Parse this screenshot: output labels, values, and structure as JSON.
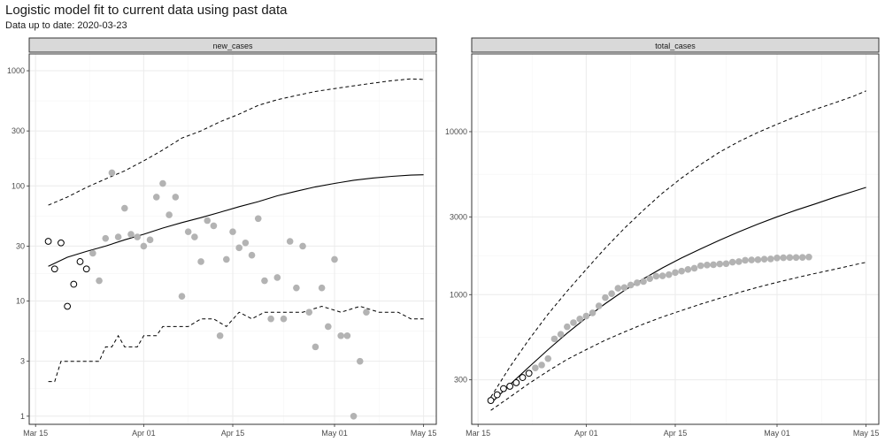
{
  "title": "Logistic model fit to current data using past data",
  "subtitle": "Data up to date: 2020-03-23",
  "chart_data": [
    {
      "type": "scatter",
      "facet": "new_cases",
      "y_scale": "log10",
      "ylim": [
        0.85,
        1400
      ],
      "y_ticks": [
        1,
        3,
        10,
        30,
        100,
        300,
        1000
      ],
      "x_ticks": [
        "2020-03-15",
        "2020-04-01",
        "2020-04-15",
        "2020-05-01",
        "2020-05-15"
      ],
      "x_tick_labels": [
        "Mar 15",
        "Apr 01",
        "Apr 15",
        "May 01",
        "May 15"
      ],
      "xlim": [
        "2020-03-14",
        "2020-05-17"
      ],
      "grid": true,
      "series": [
        {
          "kind": "current",
          "x": [
            "2020-03-17",
            "2020-03-18",
            "2020-03-19",
            "2020-03-20",
            "2020-03-21",
            "2020-03-22",
            "2020-03-23"
          ],
          "y": [
            33,
            19,
            32,
            9,
            14,
            22,
            19
          ]
        },
        {
          "kind": "past",
          "x": [
            "2020-03-24",
            "2020-03-25",
            "2020-03-26",
            "2020-03-27",
            "2020-03-28",
            "2020-03-29",
            "2020-03-30",
            "2020-03-31",
            "2020-04-01",
            "2020-04-02",
            "2020-04-03",
            "2020-04-04",
            "2020-04-05",
            "2020-04-06",
            "2020-04-07",
            "2020-04-08",
            "2020-04-09",
            "2020-04-10",
            "2020-04-11",
            "2020-04-12",
            "2020-04-13",
            "2020-04-14",
            "2020-04-15",
            "2020-04-16",
            "2020-04-17",
            "2020-04-18",
            "2020-04-19",
            "2020-04-20",
            "2020-04-21",
            "2020-04-22",
            "2020-04-23",
            "2020-04-24",
            "2020-04-25",
            "2020-04-26",
            "2020-04-27",
            "2020-04-28",
            "2020-04-29",
            "2020-04-30",
            "2020-05-01",
            "2020-05-02",
            "2020-05-03",
            "2020-05-04",
            "2020-05-05",
            "2020-05-06"
          ],
          "y": [
            26,
            15,
            35,
            130,
            36,
            64,
            38,
            36,
            30,
            34,
            80,
            105,
            56,
            80,
            11,
            40,
            36,
            22,
            50,
            45,
            5,
            23,
            40,
            29,
            32,
            25,
            52,
            15,
            7,
            16,
            7,
            33,
            13,
            30,
            8,
            4,
            13,
            6,
            23,
            5,
            5,
            1,
            3,
            8
          ]
        }
      ],
      "fit": {
        "x": [
          "2020-03-17",
          "2020-03-20",
          "2020-03-23",
          "2020-03-26",
          "2020-03-29",
          "2020-04-01",
          "2020-04-04",
          "2020-04-07",
          "2020-04-10",
          "2020-04-13",
          "2020-04-16",
          "2020-04-19",
          "2020-04-22",
          "2020-04-25",
          "2020-04-28",
          "2020-05-01",
          "2020-05-04",
          "2020-05-07",
          "2020-05-10",
          "2020-05-13",
          "2020-05-15"
        ],
        "y": [
          20,
          24,
          27,
          30,
          34,
          38,
          43,
          48,
          53,
          59,
          66,
          73,
          82,
          90,
          98,
          105,
          112,
          117,
          121,
          124,
          125
        ]
      },
      "upper": {
        "x": [
          "2020-03-17",
          "2020-03-20",
          "2020-03-23",
          "2020-03-26",
          "2020-03-29",
          "2020-04-01",
          "2020-04-04",
          "2020-04-07",
          "2020-04-10",
          "2020-04-13",
          "2020-04-16",
          "2020-04-19",
          "2020-04-22",
          "2020-04-25",
          "2020-04-28",
          "2020-05-01",
          "2020-05-04",
          "2020-05-07",
          "2020-05-10",
          "2020-05-13",
          "2020-05-15"
        ],
        "y": [
          68,
          80,
          97,
          115,
          135,
          165,
          205,
          260,
          300,
          360,
          420,
          500,
          560,
          610,
          660,
          700,
          740,
          780,
          820,
          850,
          840
        ]
      },
      "lower": {
        "x": [
          "2020-03-17",
          "2020-03-18",
          "2020-03-19",
          "2020-03-20",
          "2020-03-25",
          "2020-03-26",
          "2020-03-27",
          "2020-03-28",
          "2020-03-29",
          "2020-03-31",
          "2020-04-01",
          "2020-04-03",
          "2020-04-04",
          "2020-04-06",
          "2020-04-08",
          "2020-04-10",
          "2020-04-12",
          "2020-04-14",
          "2020-04-16",
          "2020-04-18",
          "2020-04-20",
          "2020-04-23",
          "2020-04-26",
          "2020-04-29",
          "2020-05-02",
          "2020-05-05",
          "2020-05-08",
          "2020-05-11",
          "2020-05-13",
          "2020-05-15"
        ],
        "y": [
          2,
          2,
          3,
          3,
          3,
          4,
          4,
          5,
          4,
          4,
          5,
          5,
          6,
          6,
          6,
          7,
          7,
          6,
          8,
          7,
          8,
          8,
          8,
          9,
          8,
          9,
          8,
          8,
          7,
          7
        ]
      }
    },
    {
      "type": "scatter",
      "facet": "total_cases",
      "y_scale": "log10",
      "ylim": [
        160,
        30000
      ],
      "y_ticks": [
        300,
        1000,
        3000,
        10000
      ],
      "x_ticks": [
        "2020-03-15",
        "2020-04-01",
        "2020-04-15",
        "2020-05-01",
        "2020-05-15"
      ],
      "x_tick_labels": [
        "Mar 15",
        "Apr 01",
        "Apr 15",
        "May 01",
        "May 15"
      ],
      "xlim": [
        "2020-03-14",
        "2020-05-17"
      ],
      "grid": true,
      "series": [
        {
          "kind": "current",
          "x": [
            "2020-03-17",
            "2020-03-18",
            "2020-03-19",
            "2020-03-20",
            "2020-03-21",
            "2020-03-22",
            "2020-03-23"
          ],
          "y": [
            224,
            243,
            265,
            274,
            288,
            310,
            329
          ]
        },
        {
          "kind": "past",
          "x": [
            "2020-03-24",
            "2020-03-25",
            "2020-03-26",
            "2020-03-27",
            "2020-03-28",
            "2020-03-29",
            "2020-03-30",
            "2020-03-31",
            "2020-04-01",
            "2020-04-02",
            "2020-04-03",
            "2020-04-04",
            "2020-04-05",
            "2020-04-06",
            "2020-04-07",
            "2020-04-08",
            "2020-04-09",
            "2020-04-10",
            "2020-04-11",
            "2020-04-12",
            "2020-04-13",
            "2020-04-14",
            "2020-04-15",
            "2020-04-16",
            "2020-04-17",
            "2020-04-18",
            "2020-04-19",
            "2020-04-20",
            "2020-04-21",
            "2020-04-22",
            "2020-04-23",
            "2020-04-24",
            "2020-04-25",
            "2020-04-26",
            "2020-04-27",
            "2020-04-28",
            "2020-04-29",
            "2020-04-30",
            "2020-05-01",
            "2020-05-02",
            "2020-05-03",
            "2020-05-04",
            "2020-05-05",
            "2020-05-06"
          ],
          "y": [
            355,
            370,
            405,
            535,
            571,
            635,
            673,
            709,
            739,
            773,
            853,
            958,
            1014,
            1094,
            1105,
            1145,
            1181,
            1203,
            1253,
            1298,
            1303,
            1326,
            1366,
            1395,
            1427,
            1452,
            1504,
            1519,
            1526,
            1542,
            1549,
            1582,
            1595,
            1625,
            1633,
            1637,
            1650,
            1656,
            1679,
            1684,
            1689,
            1690,
            1693,
            1701
          ]
        }
      ],
      "fit": {
        "x": [
          "2020-03-17",
          "2020-03-20",
          "2020-03-23",
          "2020-03-26",
          "2020-03-29",
          "2020-04-01",
          "2020-04-04",
          "2020-04-07",
          "2020-04-10",
          "2020-04-13",
          "2020-04-16",
          "2020-04-19",
          "2020-04-22",
          "2020-04-25",
          "2020-04-28",
          "2020-05-01",
          "2020-05-04",
          "2020-05-07",
          "2020-05-10",
          "2020-05-13",
          "2020-05-15"
        ],
        "y": [
          215,
          280,
          360,
          460,
          580,
          720,
          880,
          1060,
          1250,
          1460,
          1680,
          1910,
          2160,
          2430,
          2710,
          3000,
          3300,
          3600,
          3950,
          4300,
          4550
        ]
      },
      "upper": {
        "x": [
          "2020-03-17",
          "2020-03-20",
          "2020-03-23",
          "2020-03-26",
          "2020-03-29",
          "2020-04-01",
          "2020-04-04",
          "2020-04-07",
          "2020-04-10",
          "2020-04-13",
          "2020-04-16",
          "2020-04-19",
          "2020-04-22",
          "2020-04-25",
          "2020-04-28",
          "2020-05-01",
          "2020-05-04",
          "2020-05-07",
          "2020-05-10",
          "2020-05-13",
          "2020-05-15"
        ],
        "y": [
          235,
          360,
          530,
          760,
          1050,
          1430,
          1930,
          2550,
          3300,
          4200,
          5200,
          6300,
          7500,
          8700,
          9900,
          11100,
          12400,
          13700,
          15000,
          16500,
          17800
        ]
      },
      "lower": {
        "x": [
          "2020-03-17",
          "2020-03-20",
          "2020-03-23",
          "2020-03-26",
          "2020-03-29",
          "2020-04-01",
          "2020-04-04",
          "2020-04-07",
          "2020-04-10",
          "2020-04-13",
          "2020-04-16",
          "2020-04-19",
          "2020-04-22",
          "2020-04-25",
          "2020-04-28",
          "2020-05-01",
          "2020-05-04",
          "2020-05-07",
          "2020-05-10",
          "2020-05-13",
          "2020-05-15"
        ],
        "y": [
          195,
          235,
          285,
          340,
          400,
          460,
          525,
          590,
          660,
          730,
          800,
          875,
          950,
          1030,
          1110,
          1190,
          1270,
          1350,
          1430,
          1520,
          1580
        ]
      }
    }
  ],
  "colors": {
    "past_points": "#b3b3b3",
    "current_points_stroke": "#000000",
    "fit_line": "#000000",
    "interval_line": "#000000",
    "strip_fill": "#d9d9d9",
    "grid": "#ebebeb"
  }
}
